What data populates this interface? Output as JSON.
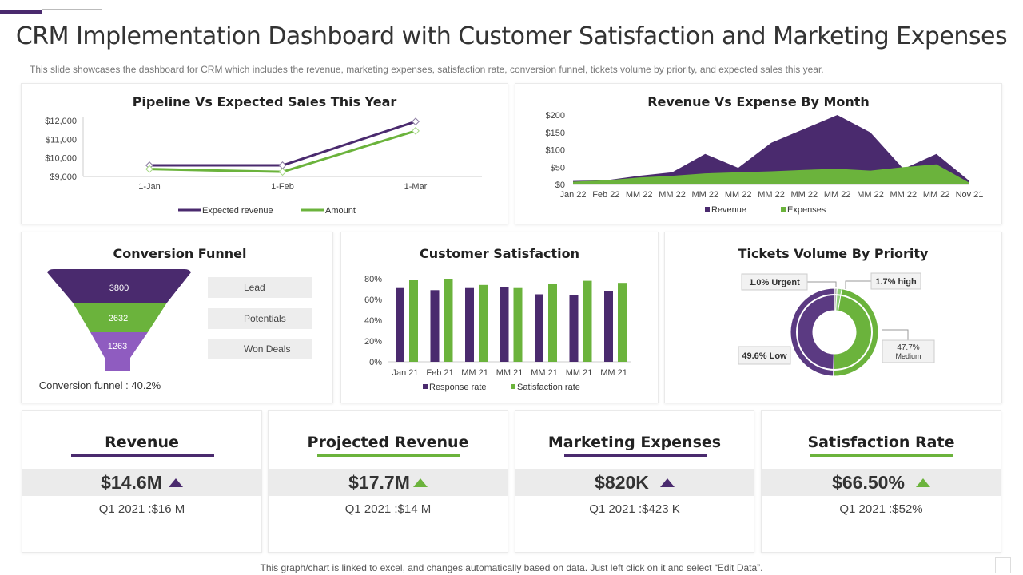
{
  "page": {
    "title": "CRM Implementation Dashboard with Customer Satisfaction and Marketing Expenses",
    "subtitle": "This slide showcases the dashboard for CRM which includes the revenue, marketing expenses, satisfaction rate, conversion funnel, tickets volume by priority, and expected sales this year.",
    "footer": "This graph/chart is linked to excel,  and changes automatically based on data. Just left click on it and select “Edit Data”."
  },
  "colors": {
    "purple": "#4a2a6e",
    "green": "#6bb33c",
    "light_purple": "#8f5cc0",
    "grey_band": "#ebebeb"
  },
  "chart_data": [
    {
      "id": "pipeline",
      "type": "line",
      "title": "Pipeline Vs Expected Sales This Year",
      "categories": [
        "1-Jan",
        "1-Feb",
        "1-Mar"
      ],
      "series": [
        {
          "name": "Expected revenue",
          "values": [
            9600,
            9600,
            11950
          ]
        },
        {
          "name": "Amount",
          "values": [
            9400,
            9250,
            11450
          ]
        }
      ],
      "yticks": [
        "$9,000",
        "$10,000",
        "$11,000",
        "$12,000"
      ],
      "ylim": [
        9000,
        12000
      ]
    },
    {
      "id": "revenue_expense",
      "type": "area",
      "title": "Revenue Vs Expense By Month",
      "categories": [
        "Jan 22",
        "Feb 22",
        "MM 22",
        "MM 22",
        "MM 22",
        "MM 22",
        "MM 22",
        "MM 22",
        "MM 22",
        "MM 22",
        "MM 22",
        "MM 22",
        "Nov 21"
      ],
      "series": [
        {
          "name": "Revenue",
          "values": [
            10,
            12,
            25,
            35,
            88,
            48,
            120,
            160,
            200,
            150,
            45,
            88,
            10
          ]
        },
        {
          "name": "Expenses",
          "values": [
            8,
            12,
            20,
            25,
            32,
            35,
            38,
            42,
            45,
            40,
            50,
            58,
            5
          ]
        }
      ],
      "yticks": [
        "$0",
        "$50",
        "$100",
        "$150",
        "$200"
      ],
      "ylim": [
        0,
        200
      ]
    },
    {
      "id": "customer_satisfaction",
      "type": "bar",
      "title": "Customer Satisfaction",
      "categories": [
        "Jan 21",
        "Feb 21",
        "MM 21",
        "MM 21",
        "MM 21",
        "MM 21",
        "MM 21"
      ],
      "series": [
        {
          "name": "Response rate",
          "values": [
            71,
            69,
            71,
            72,
            65,
            64,
            68
          ]
        },
        {
          "name": "Satisfaction rate",
          "values": [
            79,
            80,
            74,
            71,
            75,
            78,
            76
          ]
        }
      ],
      "yticks": [
        "0%",
        "20%",
        "40%",
        "60%",
        "80%"
      ],
      "ylim": [
        0,
        80
      ]
    },
    {
      "id": "tickets_priority",
      "type": "pie",
      "title": "Tickets Volume By Priority",
      "slices": [
        {
          "label": "1.0% Urgent",
          "value": 1.0
        },
        {
          "label": "1.7% high",
          "value": 1.7
        },
        {
          "label": "47.7% Medium",
          "value": 47.7
        },
        {
          "label": "49.6% Low",
          "value": 49.6
        }
      ]
    },
    {
      "id": "conversion_funnel",
      "type": "funnel",
      "title": "Conversion Funnel",
      "stages": [
        {
          "label": "Lead",
          "value": "3800"
        },
        {
          "label": "Potentials",
          "value": "2632"
        },
        {
          "label": "Won Deals",
          "value": "1263"
        }
      ],
      "conversion_text": "Conversion  funnel  : 40.2%"
    }
  ],
  "kpis": [
    {
      "title": "Revenue",
      "value": "$14.6M",
      "sub": "Q1 2021 :$16 M",
      "color": "#4a2a6e"
    },
    {
      "title": "Projected Revenue",
      "value": "$17.7M",
      "sub": "Q1 2021 :$14 M",
      "color": "#6bb33c"
    },
    {
      "title": "Marketing Expenses",
      "value": "$820K",
      "sub": "Q1 2021 :$423 K",
      "color": "#4a2a6e"
    },
    {
      "title": "Satisfaction Rate",
      "value": "$66.50%",
      "sub": "Q1 2021 :$52%",
      "color": "#6bb33c"
    }
  ]
}
